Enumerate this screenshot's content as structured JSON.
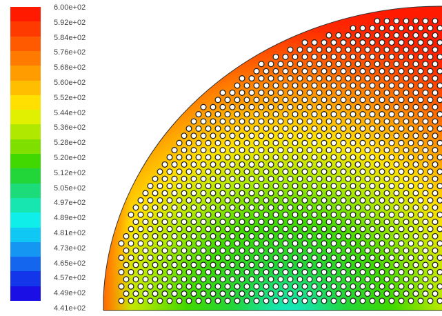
{
  "colorbar": {
    "labels": [
      "6.00e+02",
      "5.92e+02",
      "5.84e+02",
      "5.76e+02",
      "5.68e+02",
      "5.60e+02",
      "5.52e+02",
      "5.44e+02",
      "5.36e+02",
      "5.28e+02",
      "5.20e+02",
      "5.12e+02",
      "5.05e+02",
      "4.97e+02",
      "4.89e+02",
      "4.81e+02",
      "4.73e+02",
      "4.65e+02",
      "4.57e+02",
      "4.49e+02",
      "4.41e+02"
    ],
    "colors": [
      "#ff1a00",
      "#ff3a00",
      "#ff5a00",
      "#ff7a00",
      "#ff9c00",
      "#ffbe00",
      "#ffe000",
      "#e0f000",
      "#b0e800",
      "#7fe000",
      "#40d800",
      "#22d63a",
      "#1cdc7a",
      "#18e6b0",
      "#10eeea",
      "#10c8f4",
      "#1496f2",
      "#1466ee",
      "#1436ea",
      "#1a10e6"
    ],
    "min": 441,
    "max": 600
  },
  "contour_plot": {
    "field_range": [
      441,
      600
    ],
    "outline_color": "#333333",
    "tube_color": "#ffffff"
  }
}
